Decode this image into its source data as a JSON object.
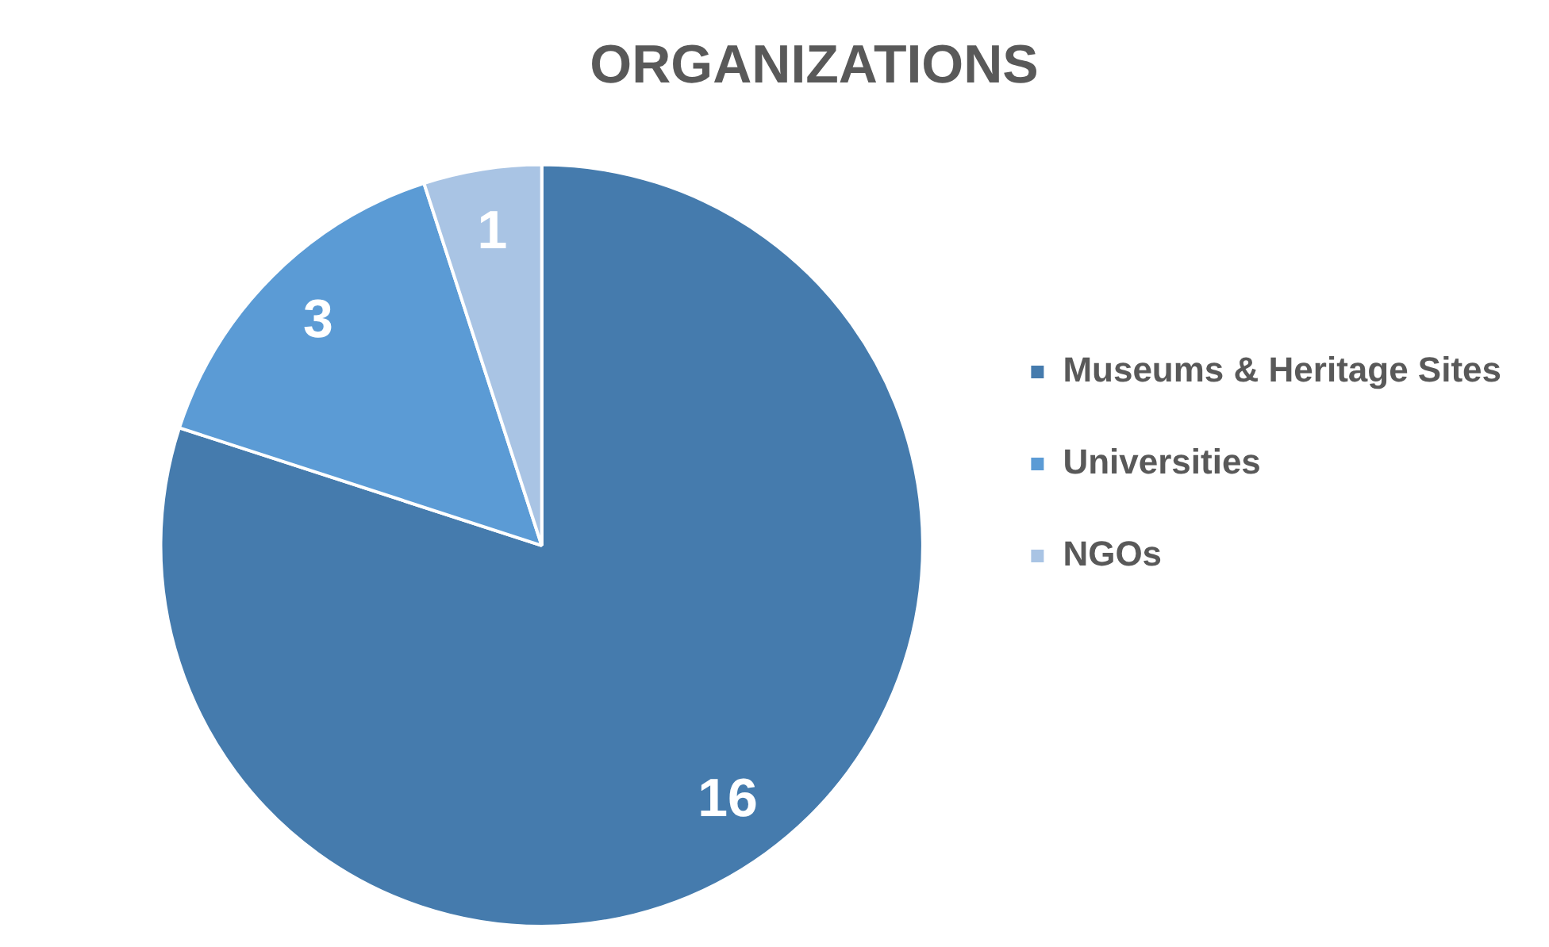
{
  "chart_data": {
    "type": "pie",
    "title": "ORGANIZATIONS",
    "categories": [
      "Museums & Heritage Sites",
      "Universities",
      "NGOs"
    ],
    "values": [
      16,
      3,
      1
    ],
    "colors": [
      "#457bad",
      "#5b9bd5",
      "#a9c4e4"
    ],
    "legend": "right",
    "data_labels": true
  }
}
